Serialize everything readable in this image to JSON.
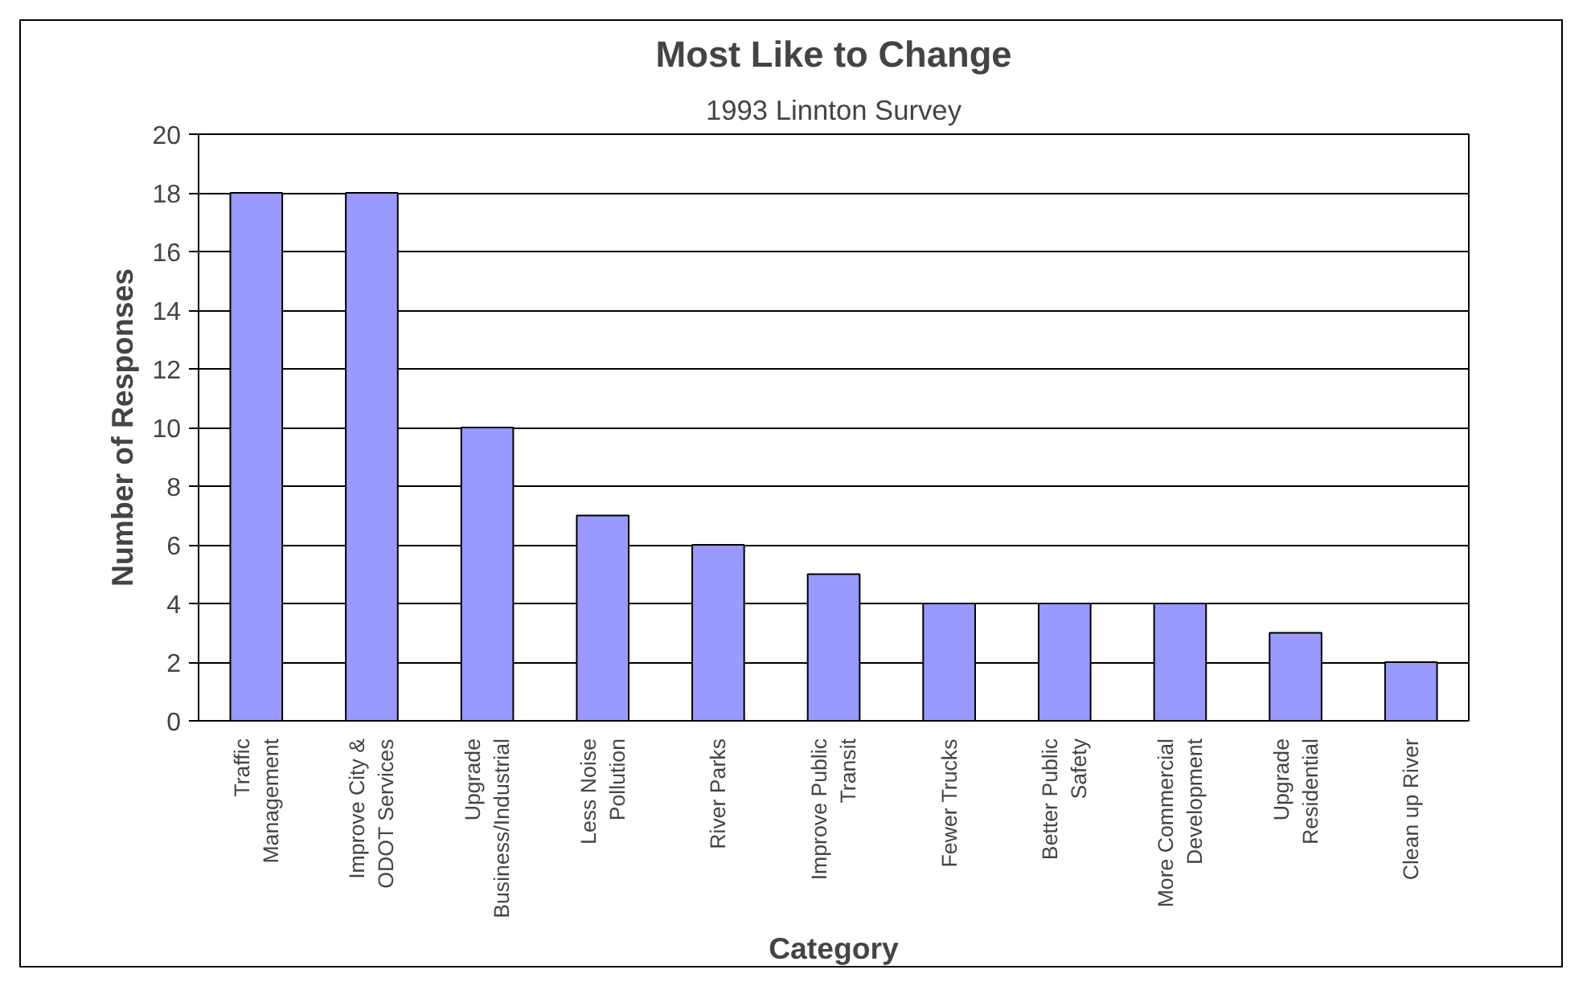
{
  "chart_data": {
    "type": "bar",
    "title": "Most Like to Change",
    "subtitle": "1993 Linnton Survey",
    "xlabel": "Category",
    "ylabel": "Number of Responses",
    "categories": [
      "Traffic Management",
      "Improve City & ODOT Services",
      "Upgrade Business/Industrial",
      "Less Noise Pollution",
      "River Parks",
      "Improve Public Transit",
      "Fewer Trucks",
      "Better Public Safety",
      "More Commercial Development",
      "Upgrade Residential",
      "Clean up River"
    ],
    "values": [
      18,
      18,
      10,
      7,
      6,
      5,
      4,
      4,
      4,
      3,
      2
    ],
    "color": "#9999ff",
    "ylim": [
      0,
      20
    ],
    "yticks": [
      0,
      2,
      4,
      6,
      8,
      10,
      12,
      14,
      16,
      18,
      20
    ],
    "grid": "y"
  }
}
